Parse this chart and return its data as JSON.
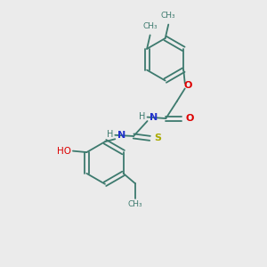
{
  "bg_color": "#ebebeb",
  "bond_color": "#3d7a6e",
  "oxygen_color": "#dd0000",
  "nitrogen_color": "#2233cc",
  "sulfur_color": "#aaaa00",
  "ho_color": "#3d7a6e",
  "line_width": 1.3,
  "font_size": 8.0,
  "small_font": 6.5,
  "figsize": [
    3.0,
    3.0
  ],
  "dpi": 100,
  "xlim": [
    0,
    10
  ],
  "ylim": [
    0,
    10
  ]
}
